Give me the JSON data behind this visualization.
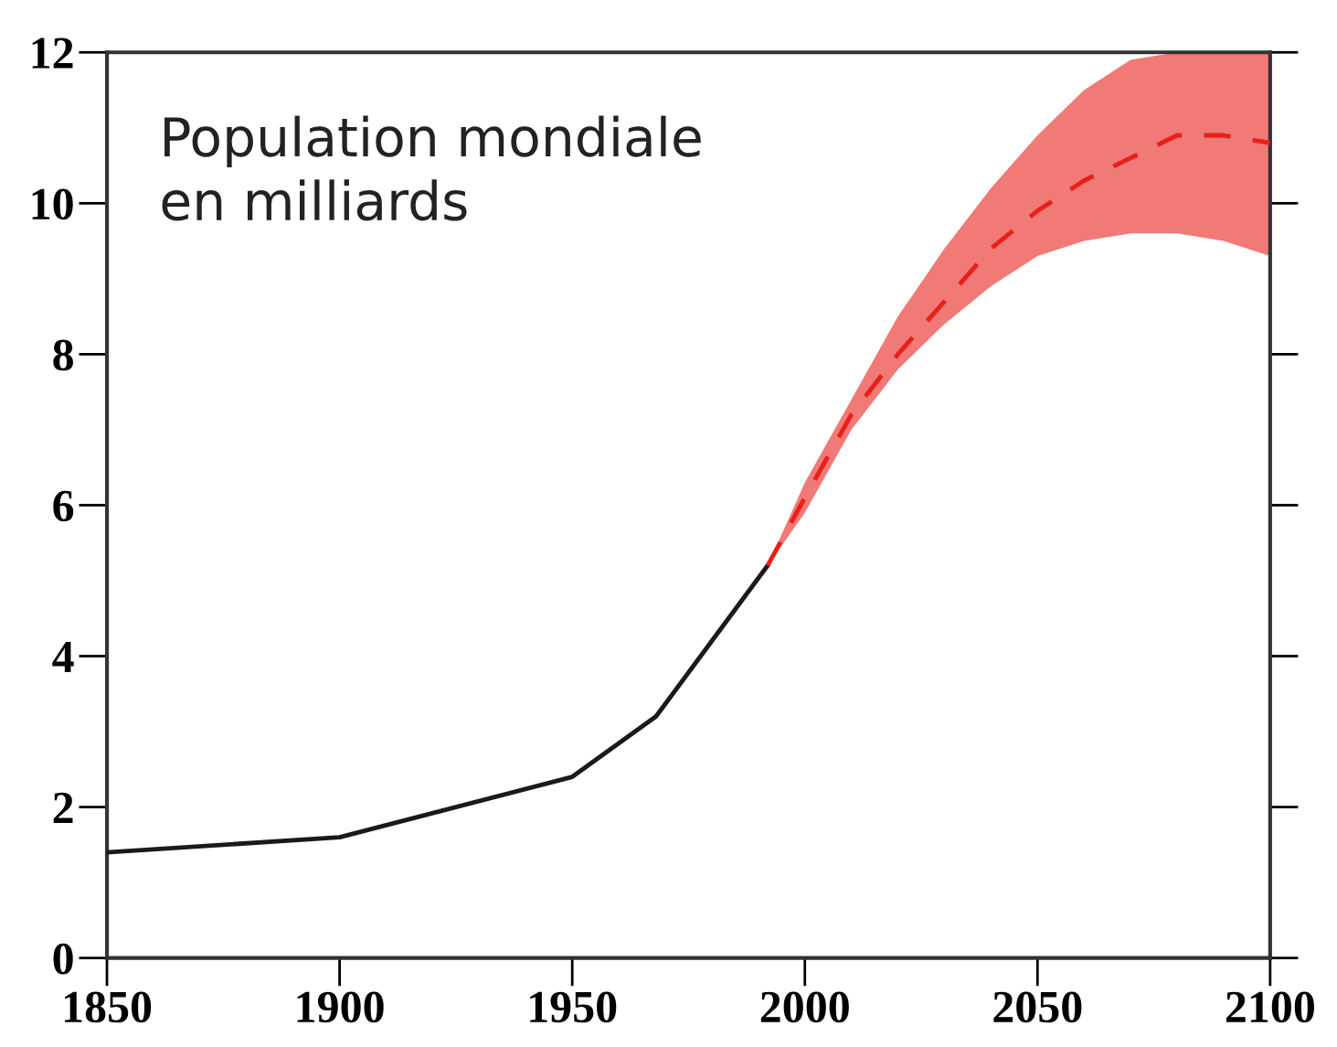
{
  "chart_data": {
    "type": "line",
    "title": "Population mondiale\nen milliards",
    "series": [
      {
        "color": "#1a1a1a",
        "line_style": "solid",
        "x": [
          1850,
          1900,
          1925,
          1950,
          1968,
          1980,
          1992
        ],
        "values": [
          1.4,
          1.6,
          2.0,
          2.4,
          3.2,
          4.2,
          5.2
        ]
      },
      {
        "color": "#e8201a",
        "line_style": "dashed",
        "x": [
          1992,
          2000,
          2010,
          2020,
          2030,
          2040,
          2050,
          2060,
          2070,
          2080,
          2090,
          2100
        ],
        "values": [
          5.2,
          6.1,
          7.2,
          8.0,
          8.7,
          9.4,
          9.9,
          10.3,
          10.6,
          10.9,
          10.9,
          10.8
        ],
        "lower": [
          5.2,
          5.9,
          7.0,
          7.8,
          8.4,
          8.9,
          9.3,
          9.5,
          9.6,
          9.6,
          9.5,
          9.3
        ],
        "upper": [
          5.2,
          6.3,
          7.4,
          8.5,
          9.4,
          10.2,
          10.9,
          11.5,
          11.9,
          12,
          12,
          12
        ]
      }
    ],
    "xlim": [
      1850,
      2100
    ],
    "xticks": [
      1850,
      1900,
      1950,
      2000,
      2050,
      2100
    ],
    "ylim": [
      0,
      12
    ],
    "yticks": [
      0,
      2,
      4,
      6,
      8,
      10,
      12
    ],
    "grid": false,
    "legend": false
  }
}
